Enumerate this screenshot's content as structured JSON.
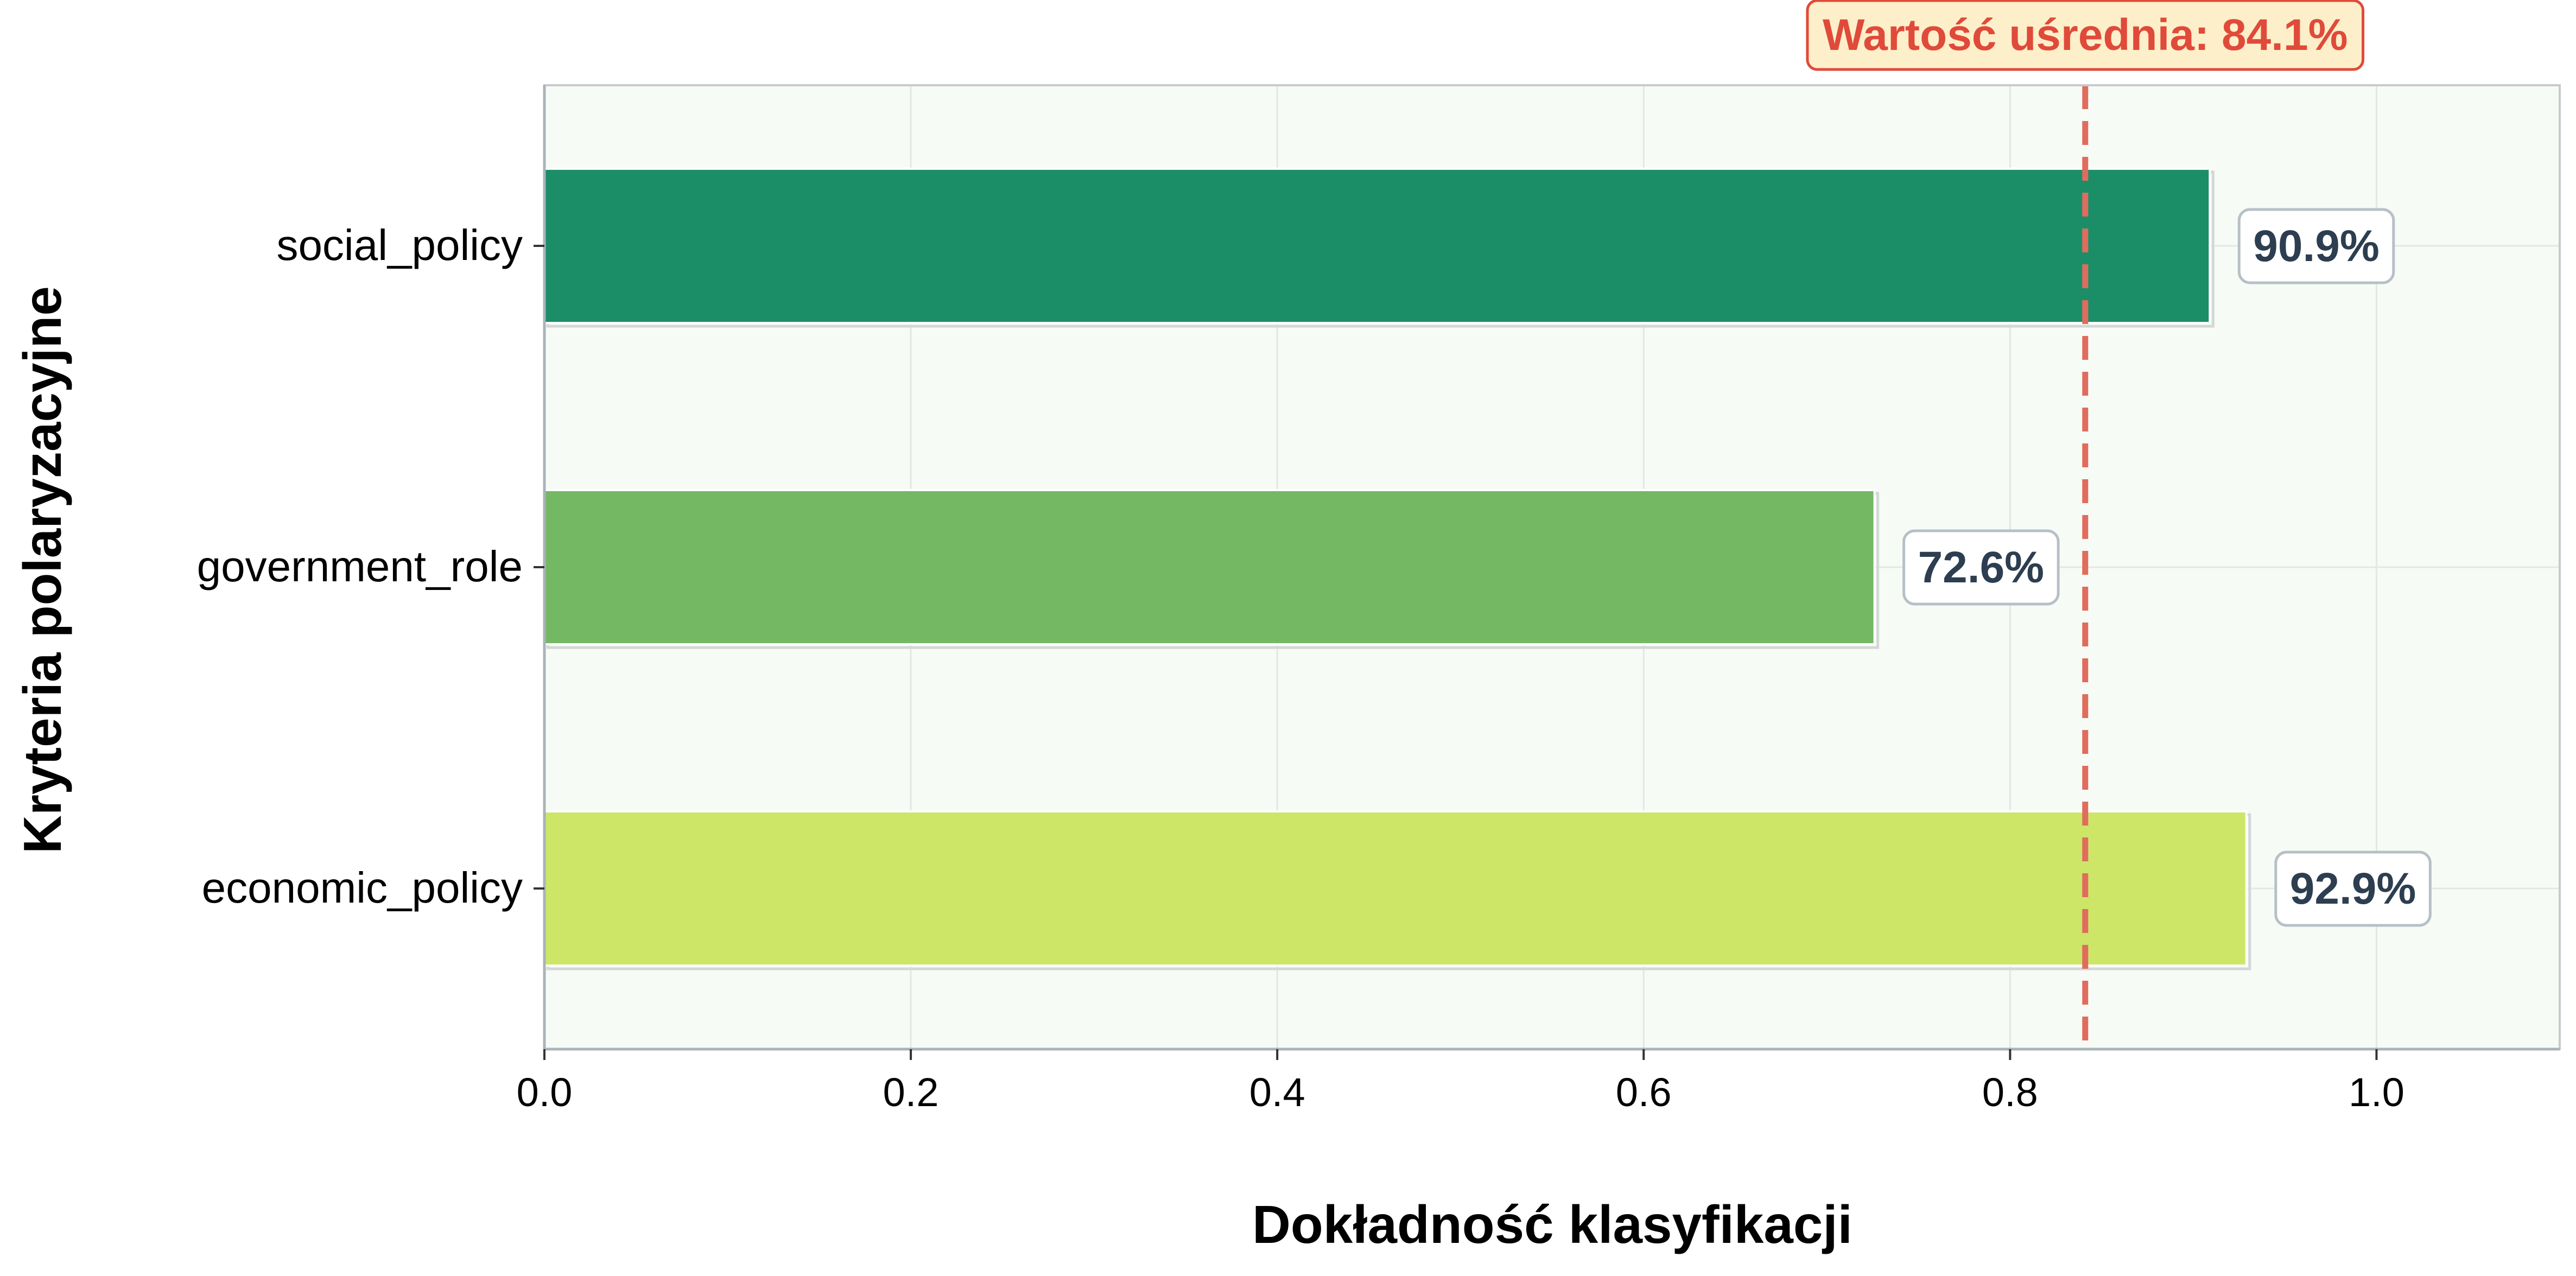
{
  "chart_data": {
    "type": "bar",
    "orientation": "horizontal",
    "categories": [
      "social_policy",
      "government_role",
      "economic_policy"
    ],
    "values": [
      0.909,
      0.726,
      0.929
    ],
    "value_labels": [
      "90.9%",
      "72.6%",
      "92.9%"
    ],
    "bar_colors": [
      "#1b8e68",
      "#74b864",
      "#cde667"
    ],
    "xlabel": "Dokładność klasyfikacji",
    "ylabel": "Kryteria polaryzacyjne",
    "xlim": [
      0.0,
      1.1
    ],
    "xticks": [
      0.0,
      0.2,
      0.4,
      0.6,
      0.8,
      1.0
    ],
    "xtick_labels": [
      "0.0",
      "0.2",
      "0.4",
      "0.6",
      "0.8",
      "1.0"
    ],
    "reference_line": {
      "value": 0.841,
      "label": "Wartość uśrednia: 84.1%",
      "color": "#e06c5e",
      "style": "dashed"
    },
    "grid": true,
    "background_color": "#f7fbf6",
    "text_color": "#2c3e50",
    "accent_label_color": "#e04a3a",
    "label_box_fill": "#fdefc9"
  }
}
